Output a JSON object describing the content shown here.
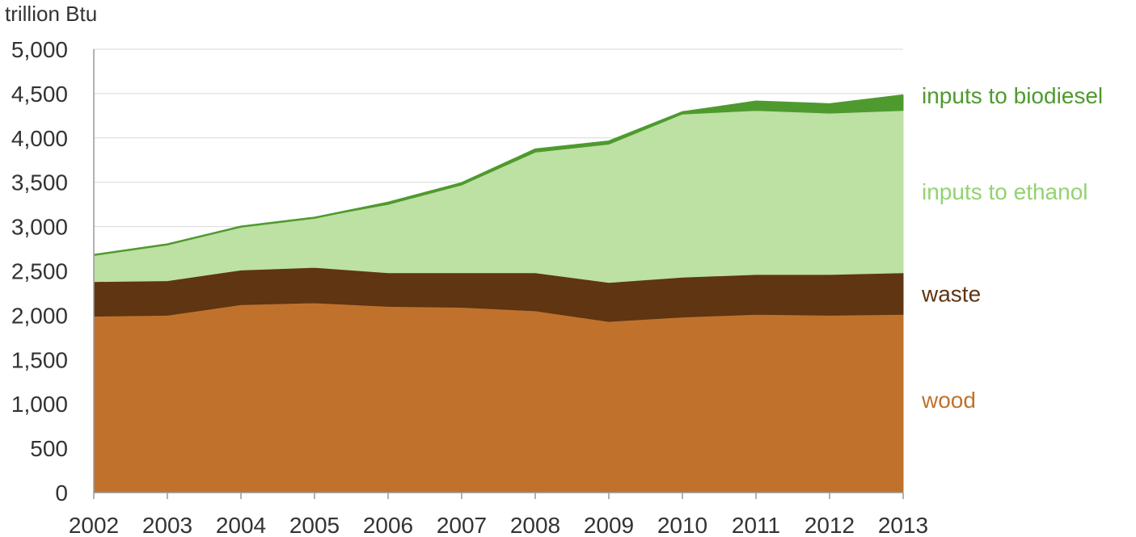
{
  "chart_data": {
    "type": "area",
    "stacked": true,
    "title": "",
    "ylabel": "trillion Btu",
    "xlabel": "",
    "x": [
      "2002",
      "2003",
      "2004",
      "2005",
      "2006",
      "2007",
      "2008",
      "2009",
      "2010",
      "2011",
      "2012",
      "2013"
    ],
    "ylim": [
      0,
      5000
    ],
    "yticks": [
      0,
      500,
      1000,
      1500,
      2000,
      2500,
      3000,
      3500,
      4000,
      4500,
      5000
    ],
    "ytick_labels": [
      "0",
      "500",
      "1,000",
      "1,500",
      "2,000",
      "2,500",
      "3,000",
      "3,500",
      "4,000",
      "4,500",
      "5,000"
    ],
    "grid": true,
    "legend": "direct labels at right",
    "series": [
      {
        "name": "wood",
        "color": "#C0722C",
        "label_color": "#C0722C",
        "values": [
          1990,
          2000,
          2120,
          2140,
          2100,
          2090,
          2050,
          1930,
          1980,
          2010,
          2000,
          2010
        ]
      },
      {
        "name": "waste",
        "color": "#5F3512",
        "label_color": "#5F3512",
        "values": [
          390,
          390,
          390,
          400,
          380,
          390,
          430,
          440,
          450,
          450,
          460,
          470
        ]
      },
      {
        "name": "inputs to ethanol",
        "color": "#BDE0A3",
        "label_color": "#92D36F",
        "values": [
          300,
          410,
          490,
          560,
          770,
          990,
          1360,
          1560,
          1840,
          1850,
          1820,
          1830
        ]
      },
      {
        "name": "inputs to biodiesel",
        "color": "#4E9A2E",
        "label_color": "#4E9A2E",
        "values": [
          0,
          0,
          0,
          0,
          20,
          20,
          30,
          30,
          20,
          100,
          100,
          170
        ]
      }
    ]
  }
}
